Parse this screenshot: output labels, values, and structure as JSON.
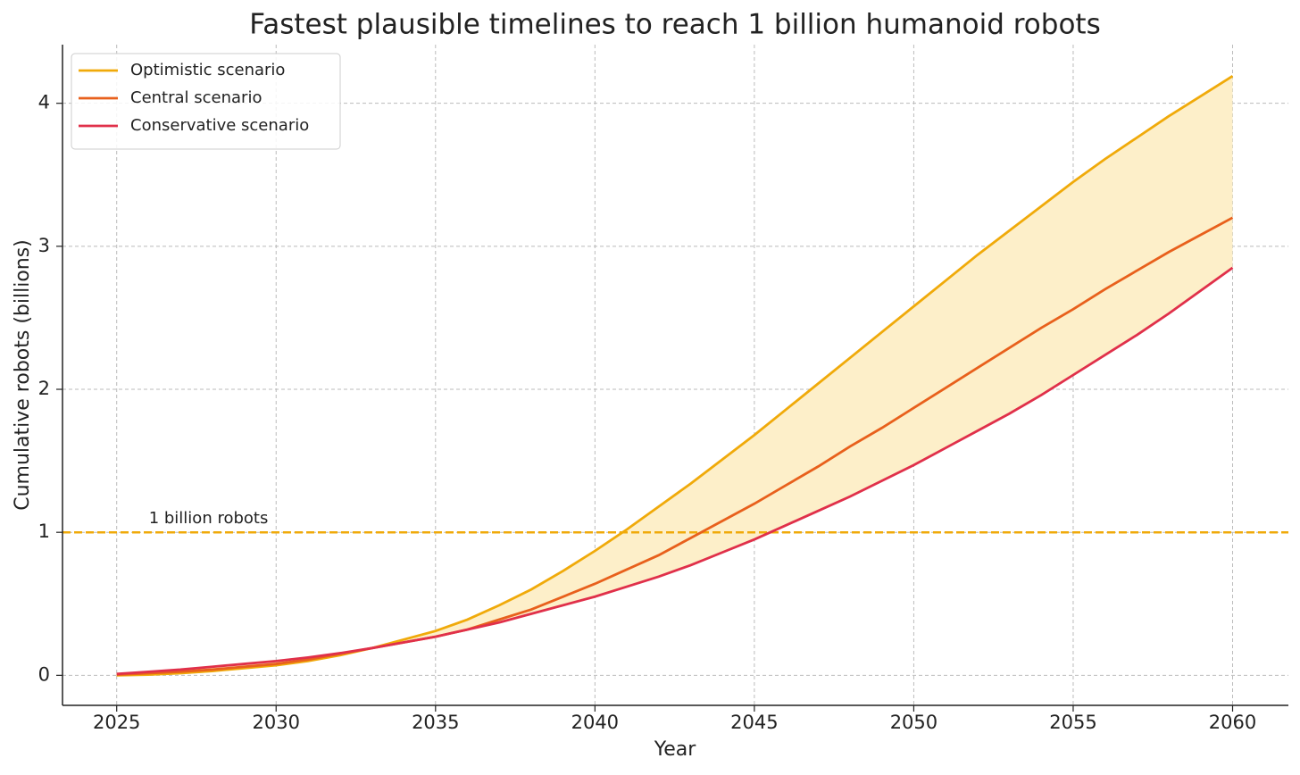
{
  "chart_data": {
    "type": "line",
    "title": "Fastest plausible timelines to reach 1 billion humanoid robots",
    "x_label": "Year",
    "y_label": "Cumulative robots (billions)",
    "x": [
      2025,
      2026,
      2027,
      2028,
      2029,
      2030,
      2031,
      2032,
      2033,
      2034,
      2035,
      2036,
      2037,
      2038,
      2039,
      2040,
      2041,
      2042,
      2043,
      2044,
      2045,
      2046,
      2047,
      2048,
      2049,
      2050,
      2051,
      2052,
      2053,
      2054,
      2055,
      2056,
      2057,
      2058,
      2059,
      2060
    ],
    "series": [
      {
        "name": "Optimistic scenario",
        "color": "#f0aa0a",
        "values": [
          0,
          0.005,
          0.015,
          0.03,
          0.05,
          0.07,
          0.1,
          0.14,
          0.19,
          0.25,
          0.31,
          0.39,
          0.49,
          0.6,
          0.73,
          0.87,
          1.02,
          1.18,
          1.34,
          1.51,
          1.68,
          1.86,
          2.04,
          2.22,
          2.4,
          2.58,
          2.76,
          2.94,
          3.11,
          3.28,
          3.45,
          3.61,
          3.76,
          3.91,
          4.05,
          4.19
        ]
      },
      {
        "name": "Central scenario",
        "color": "#e8601c",
        "values": [
          0.005,
          0.015,
          0.025,
          0.04,
          0.06,
          0.08,
          0.11,
          0.15,
          0.19,
          0.23,
          0.27,
          0.32,
          0.39,
          0.46,
          0.55,
          0.64,
          0.74,
          0.84,
          0.96,
          1.08,
          1.2,
          1.33,
          1.46,
          1.6,
          1.73,
          1.87,
          2.01,
          2.15,
          2.29,
          2.43,
          2.56,
          2.7,
          2.83,
          2.96,
          3.08,
          3.2
        ]
      },
      {
        "name": "Conservative scenario",
        "color": "#e0304a",
        "values": [
          0.01,
          0.025,
          0.04,
          0.06,
          0.08,
          0.1,
          0.125,
          0.155,
          0.19,
          0.23,
          0.27,
          0.32,
          0.37,
          0.43,
          0.49,
          0.55,
          0.62,
          0.69,
          0.77,
          0.86,
          0.95,
          1.05,
          1.15,
          1.25,
          1.36,
          1.47,
          1.59,
          1.71,
          1.83,
          1.96,
          2.1,
          2.24,
          2.38,
          2.53,
          2.69,
          2.85
        ]
      }
    ],
    "band_color": "#fdefc9",
    "threshold": {
      "value": 1,
      "label": "1 billion robots",
      "color": "#f0aa0a"
    },
    "xlim": [
      2023.3,
      2061.75
    ],
    "ylim": [
      -0.21,
      4.41
    ],
    "xticks": [
      2025,
      2030,
      2035,
      2040,
      2045,
      2050,
      2055,
      2060
    ],
    "yticks": [
      0,
      1,
      2,
      3,
      4
    ],
    "grid": true,
    "legend": "upper left"
  }
}
